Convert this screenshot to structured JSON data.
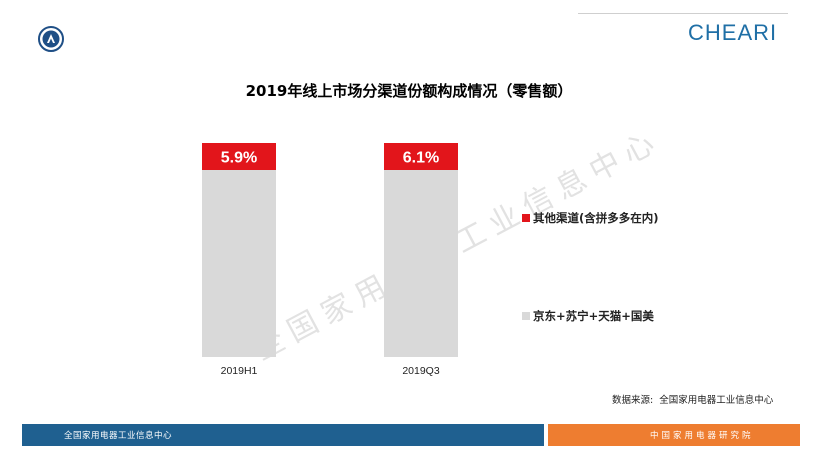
{
  "brand": {
    "name": "CHEARI"
  },
  "chart_data": {
    "type": "bar",
    "title": "2019年线上市场分渠道份额构成情况（零售额）",
    "categories": [
      "2019H1",
      "2019Q3"
    ],
    "stacked": true,
    "ylim": [
      0,
      100
    ],
    "series": [
      {
        "name": "京东+苏宁+天猫+国美",
        "values": [
          94.1,
          93.9
        ],
        "color": "#d9d9d9"
      },
      {
        "name": "其他渠道(含拼多多在内)",
        "values": [
          5.9,
          6.1
        ],
        "color": "#e2151b"
      }
    ],
    "data_labels": [
      "5.9%",
      "6.1%"
    ],
    "legend": [
      {
        "label": "其他渠道(含拼多多在内)",
        "color": "#e2151b"
      },
      {
        "label": "京东+苏宁+天猫+国美",
        "color": "#d9d9d9"
      }
    ],
    "legend_position": "right"
  },
  "watermark": "全国家用电器工业信息中心",
  "source": {
    "label": "数据来源:",
    "value": "全国家用电器工业信息中心"
  },
  "footer": {
    "left": "全国家用电器工业信息中心",
    "right": "中国家用电器研究院"
  }
}
